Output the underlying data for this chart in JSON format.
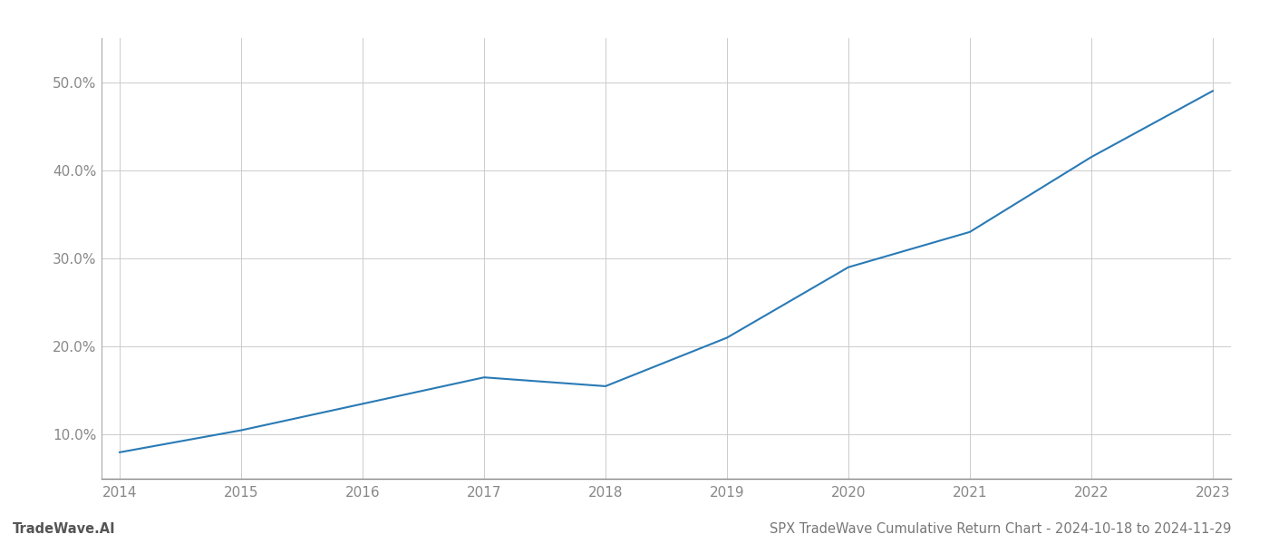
{
  "years": [
    2014,
    2015,
    2016,
    2017,
    2018,
    2019,
    2020,
    2021,
    2022,
    2023
  ],
  "values": [
    8.0,
    10.5,
    13.5,
    16.5,
    15.5,
    21.0,
    29.0,
    33.0,
    41.5,
    49.0
  ],
  "line_color": "#2a7ab5",
  "line_width": 1.5,
  "title": "SPX TradeWave Cumulative Return Chart - 2024-10-18 to 2024-11-29",
  "watermark": "TradeWave.AI",
  "ylim_min": 5.0,
  "ylim_max": 55.0,
  "yticks": [
    10.0,
    20.0,
    30.0,
    40.0,
    50.0
  ],
  "background_color": "#ffffff",
  "grid_color": "#cccccc",
  "title_fontsize": 10.5,
  "watermark_fontsize": 10.5,
  "tick_fontsize": 11,
  "tick_color": "#888888"
}
